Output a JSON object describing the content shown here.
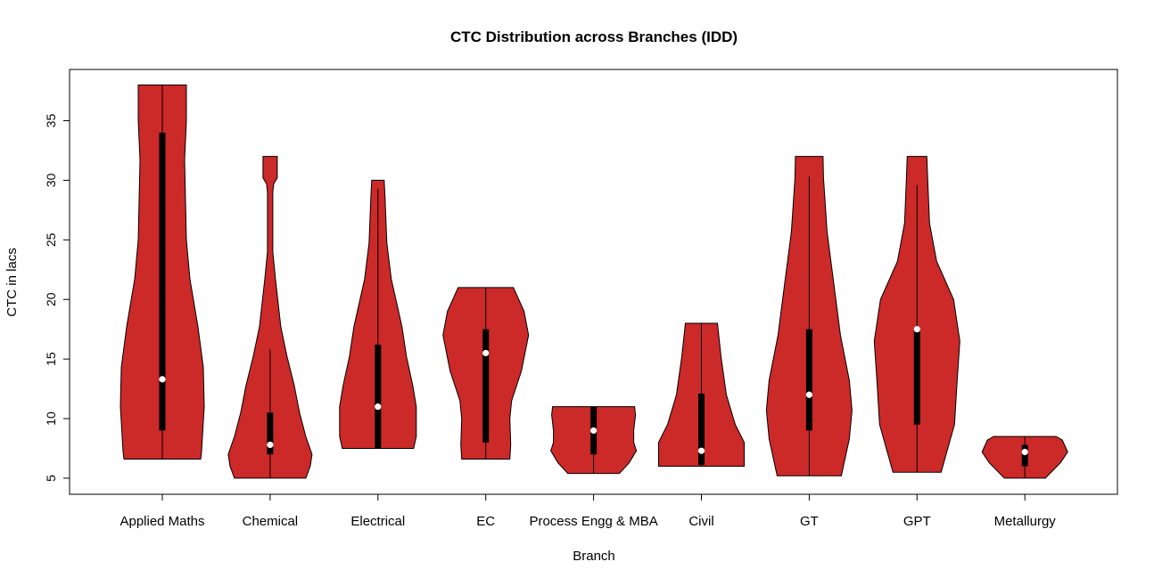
{
  "chart_data": {
    "type": "violin",
    "title": "CTC Distribution across Branches (IDD)",
    "xlabel": "Branch",
    "ylabel": "CTC in lacs",
    "ylim": [
      3.65,
      39.3
    ],
    "yticks": [
      5,
      10,
      15,
      20,
      25,
      30,
      35
    ],
    "grid": false,
    "fill_color": "#CC2929",
    "categories": [
      "Applied Maths",
      "Chemical",
      "Electrical",
      "EC",
      "Process Engg & MBA",
      "Civil",
      "GT",
      "GPT",
      "Metallurgy"
    ],
    "series": [
      {
        "min": 6.6,
        "max": 38,
        "q1": 9,
        "median": 13.3,
        "q3": 34,
        "whisker_low": 6.6,
        "whisker_high": 38,
        "density": [
          [
            6.6,
            0.86
          ],
          [
            7.2,
            0.88
          ],
          [
            11,
            0.94
          ],
          [
            14.3,
            0.92
          ],
          [
            17.7,
            0.8
          ],
          [
            21.7,
            0.62
          ],
          [
            25,
            0.54
          ],
          [
            31.7,
            0.5
          ],
          [
            35,
            0.54
          ],
          [
            38,
            0.54
          ]
        ]
      },
      {
        "min": 5,
        "max": 32,
        "q1": 7,
        "median": 7.8,
        "q3": 10.5,
        "whisker_low": 5,
        "whisker_high": 15.8,
        "density": [
          [
            5,
            0.8
          ],
          [
            6,
            0.9
          ],
          [
            7,
            0.94
          ],
          [
            8.5,
            0.8
          ],
          [
            10.5,
            0.66
          ],
          [
            12.8,
            0.54
          ],
          [
            15.2,
            0.38
          ],
          [
            17.7,
            0.24
          ],
          [
            21.7,
            0.12
          ],
          [
            24,
            0.06
          ],
          [
            29,
            0.06
          ],
          [
            29.7,
            0.08
          ],
          [
            30.2,
            0.16
          ],
          [
            32,
            0.16
          ]
        ]
      },
      {
        "min": 7.5,
        "max": 30,
        "q1": 7.5,
        "median": 11,
        "q3": 16.2,
        "whisker_low": 7.5,
        "whisker_high": 29.3,
        "density": [
          [
            7.5,
            0.8
          ],
          [
            8.5,
            0.86
          ],
          [
            11,
            0.86
          ],
          [
            12.8,
            0.78
          ],
          [
            15.2,
            0.64
          ],
          [
            17.7,
            0.54
          ],
          [
            21.7,
            0.3
          ],
          [
            24.7,
            0.2
          ],
          [
            28.5,
            0.16
          ],
          [
            30,
            0.14
          ]
        ]
      },
      {
        "min": 6.6,
        "max": 21,
        "q1": 8,
        "median": 15.5,
        "q3": 17.5,
        "whisker_low": 6.6,
        "whisker_high": 21,
        "density": [
          [
            6.6,
            0.54
          ],
          [
            7.8,
            0.56
          ],
          [
            10,
            0.54
          ],
          [
            11.5,
            0.58
          ],
          [
            14,
            0.8
          ],
          [
            17,
            0.96
          ],
          [
            19,
            0.86
          ],
          [
            21,
            0.62
          ]
        ]
      },
      {
        "min": 5.4,
        "max": 11,
        "q1": 7,
        "median": 9,
        "q3": 11,
        "whisker_low": 5.4,
        "whisker_high": 11,
        "density": [
          [
            5.4,
            0.58
          ],
          [
            6.3,
            0.8
          ],
          [
            7.3,
            0.96
          ],
          [
            8,
            0.9
          ],
          [
            9,
            0.9
          ],
          [
            10.3,
            0.94
          ],
          [
            11,
            0.92
          ]
        ]
      },
      {
        "min": 6,
        "max": 18,
        "q1": 6.1,
        "median": 7.3,
        "q3": 12.1,
        "whisker_low": 6,
        "whisker_high": 18,
        "density": [
          [
            6,
            0.96
          ],
          [
            8,
            0.96
          ],
          [
            9.5,
            0.76
          ],
          [
            12,
            0.56
          ],
          [
            15.2,
            0.44
          ],
          [
            18,
            0.36
          ]
        ]
      },
      {
        "min": 5.2,
        "max": 32,
        "q1": 9,
        "median": 12,
        "q3": 17.5,
        "whisker_low": 5.2,
        "whisker_high": 30.3,
        "density": [
          [
            5.2,
            0.72
          ],
          [
            8.3,
            0.9
          ],
          [
            10.7,
            0.96
          ],
          [
            13.2,
            0.9
          ],
          [
            17,
            0.7
          ],
          [
            20.5,
            0.58
          ],
          [
            25.7,
            0.4
          ],
          [
            30.2,
            0.32
          ],
          [
            32,
            0.31
          ]
        ]
      },
      {
        "min": 5.5,
        "max": 32,
        "q1": 9.5,
        "median": 17.5,
        "q3": 17.5,
        "whisker_low": 5.5,
        "whisker_high": 29.6,
        "density": [
          [
            5.5,
            0.54
          ],
          [
            9.5,
            0.84
          ],
          [
            13.2,
            0.9
          ],
          [
            16.5,
            0.96
          ],
          [
            20,
            0.82
          ],
          [
            23.2,
            0.44
          ],
          [
            26.4,
            0.28
          ],
          [
            30,
            0.24
          ],
          [
            32,
            0.22
          ]
        ]
      },
      {
        "min": 5,
        "max": 8.5,
        "q1": 6,
        "median": 7.2,
        "q3": 7.8,
        "whisker_low": 5,
        "whisker_high": 8.5,
        "density": [
          [
            5,
            0.46
          ],
          [
            6.3,
            0.8
          ],
          [
            7.2,
            0.96
          ],
          [
            8.2,
            0.84
          ],
          [
            8.5,
            0.7
          ]
        ]
      }
    ]
  }
}
